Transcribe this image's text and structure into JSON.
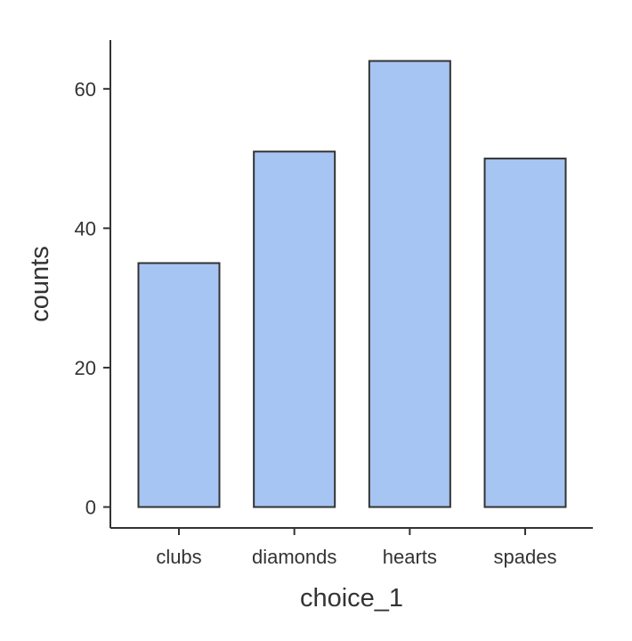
{
  "chart_data": {
    "type": "bar",
    "categories": [
      "clubs",
      "diamonds",
      "hearts",
      "spades"
    ],
    "values": [
      35,
      51,
      64,
      50
    ],
    "xlabel": "choice_1",
    "ylabel": "counts",
    "ylim": [
      -3,
      67
    ],
    "yticks": [
      0,
      20,
      40,
      60
    ],
    "grid": false,
    "bar_color": "#a7c5f2",
    "outline_color": "#333333"
  }
}
